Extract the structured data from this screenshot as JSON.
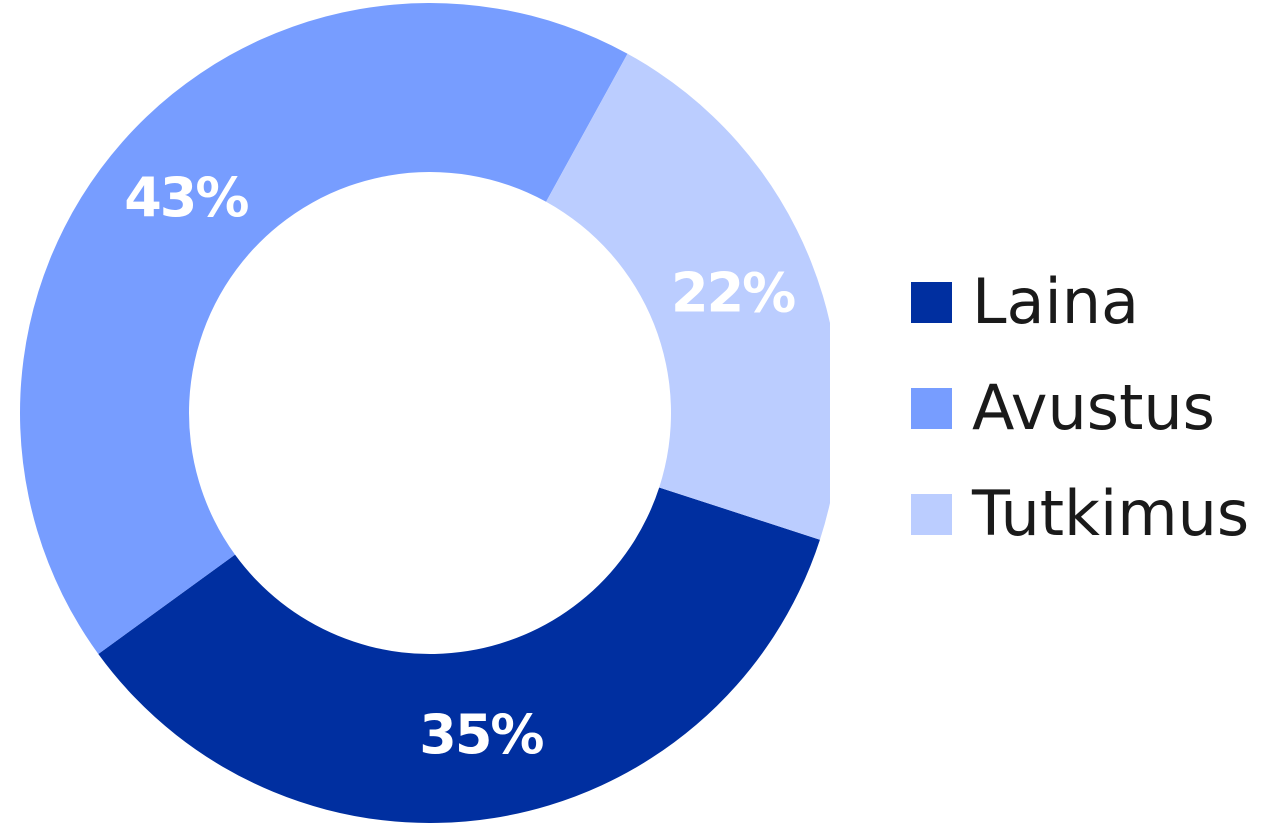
{
  "chart_data": {
    "type": "pie",
    "donut": true,
    "title": "",
    "categories": [
      "Laina",
      "Avustus",
      "Tutkimus"
    ],
    "values": [
      35,
      43,
      22
    ],
    "value_labels": [
      "35%",
      "43%",
      "22%"
    ],
    "colors": [
      "#002fa0",
      "#779dff",
      "#bbcdff"
    ],
    "legend_position": "right"
  },
  "legend": {
    "items": [
      {
        "label": "Laina",
        "color": "#002fa0"
      },
      {
        "label": "Avustus",
        "color": "#779dff"
      },
      {
        "label": "Tutkimus",
        "color": "#bbcdff"
      }
    ]
  }
}
